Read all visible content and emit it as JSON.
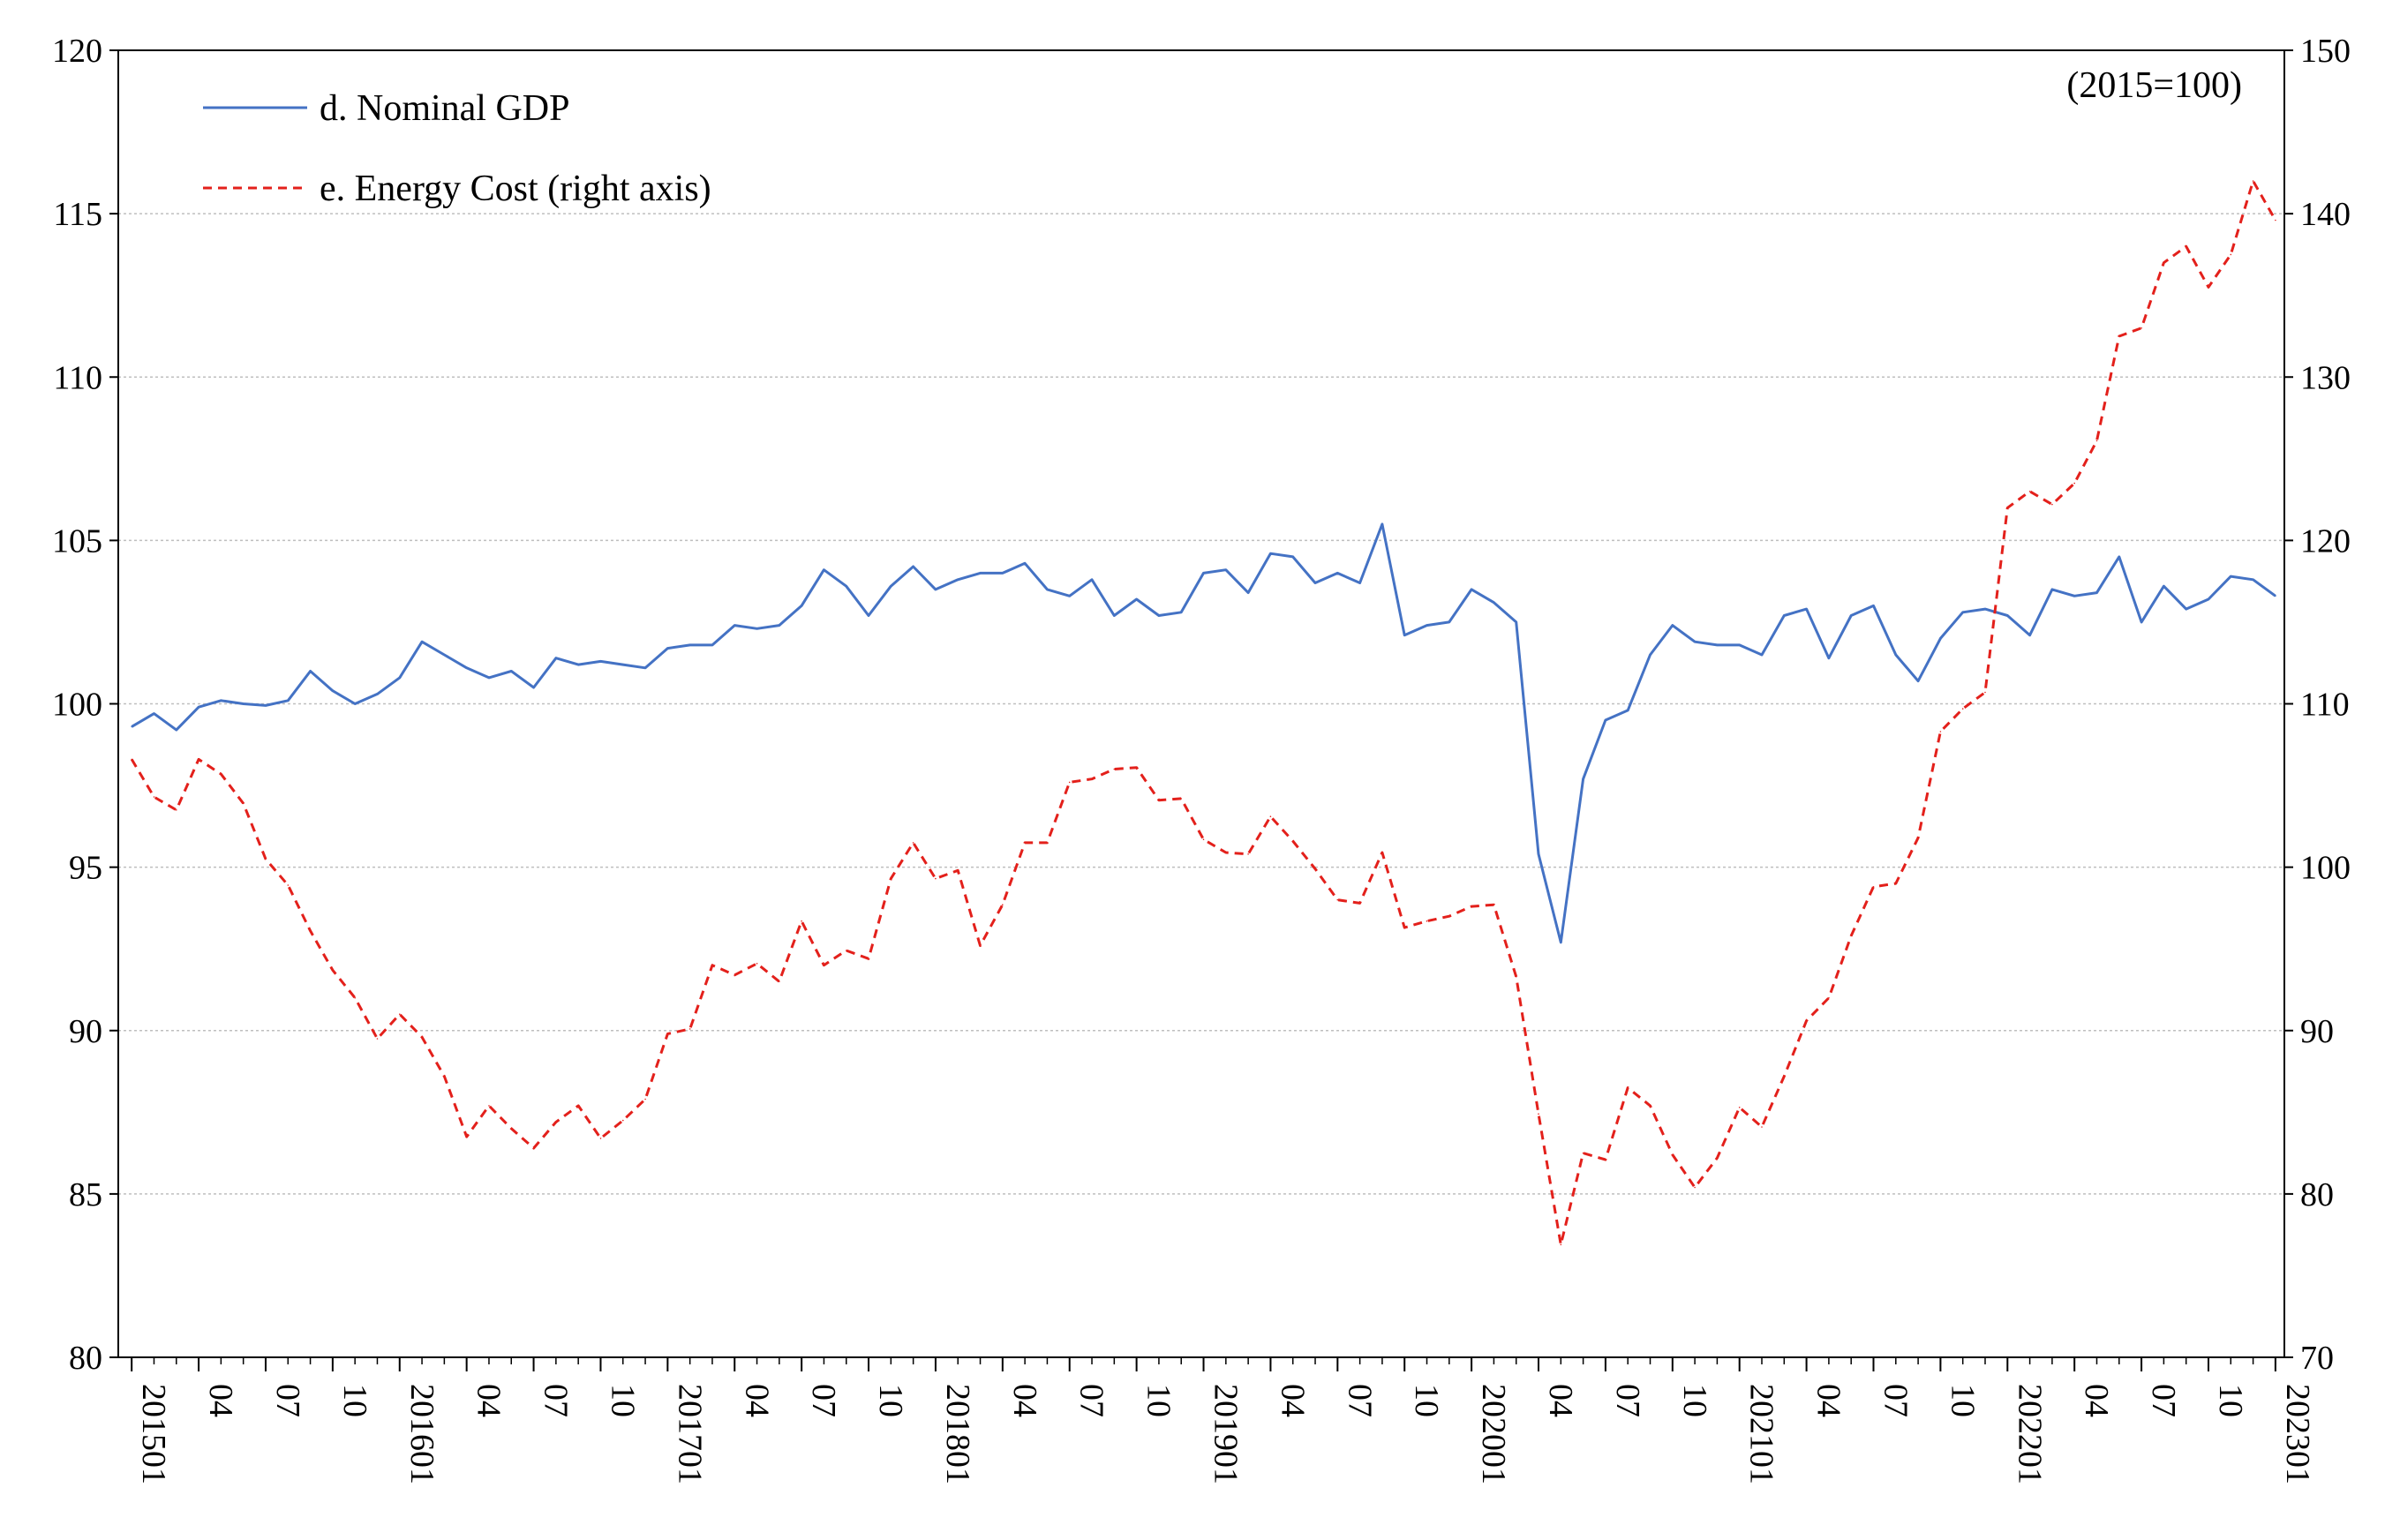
{
  "chart_data": {
    "type": "line",
    "note": "(2015=100)",
    "legend_position": "top-left",
    "grid": true,
    "y_left": {
      "min": 80,
      "max": 120,
      "ticks": [
        80,
        85,
        90,
        95,
        100,
        105,
        110,
        115,
        120
      ]
    },
    "y_right": {
      "min": 70,
      "max": 150,
      "ticks": [
        70,
        80,
        90,
        100,
        110,
        120,
        130,
        140,
        150
      ]
    },
    "x_tick_labels": [
      "201501",
      "04",
      "07",
      "10",
      "201601",
      "04",
      "07",
      "10",
      "201701",
      "04",
      "07",
      "10",
      "201801",
      "04",
      "07",
      "10",
      "201901",
      "04",
      "07",
      "10",
      "202001",
      "04",
      "07",
      "10",
      "202101",
      "04",
      "07",
      "10",
      "202201",
      "04",
      "07",
      "10",
      "202301"
    ],
    "x_tick_months": [
      0,
      3,
      6,
      9,
      12,
      15,
      18,
      21,
      24,
      27,
      30,
      33,
      36,
      39,
      42,
      45,
      48,
      51,
      54,
      57,
      60,
      63,
      66,
      69,
      72,
      75,
      78,
      81,
      84,
      87,
      90,
      93,
      96
    ],
    "series": [
      {
        "name": "d. Nominal GDP",
        "axis": "left",
        "color": "#4472C4",
        "style": "solid",
        "values": [
          99.3,
          99.7,
          99.2,
          99.9,
          100.1,
          100.0,
          99.95,
          100.1,
          101.0,
          100.4,
          100.0,
          100.3,
          100.8,
          101.9,
          101.5,
          101.1,
          100.8,
          101.0,
          100.5,
          101.4,
          101.2,
          101.3,
          101.2,
          101.1,
          101.7,
          101.8,
          101.8,
          102.4,
          102.3,
          102.4,
          103.0,
          104.1,
          103.6,
          102.7,
          103.6,
          104.2,
          103.5,
          103.8,
          104.0,
          104.0,
          104.3,
          103.5,
          103.3,
          103.8,
          102.7,
          103.2,
          102.7,
          102.8,
          104.0,
          104.1,
          103.4,
          104.6,
          104.5,
          103.7,
          104.0,
          103.7,
          105.5,
          102.1,
          102.4,
          102.5,
          103.5,
          103.1,
          102.5,
          95.4,
          92.7,
          97.7,
          99.5,
          99.8,
          101.5,
          102.4,
          101.9,
          101.8,
          101.8,
          101.5,
          102.7,
          102.9,
          101.4,
          102.7,
          103.0,
          101.5,
          100.7,
          102.0,
          102.8,
          102.9,
          102.7,
          102.1,
          103.5,
          103.3,
          103.4,
          104.5,
          102.5,
          103.6,
          102.9,
          103.2,
          103.9,
          103.8,
          103.3
        ]
      },
      {
        "name": "e. Energy Cost (right axis)",
        "axis": "right",
        "color": "#E3201B",
        "style": "dashed",
        "values": [
          106.6,
          104.3,
          103.5,
          106.6,
          105.7,
          103.9,
          100.5,
          98.9,
          96.1,
          93.7,
          92.0,
          89.5,
          91.0,
          89.6,
          87.2,
          83.5,
          85.4,
          84.0,
          82.8,
          84.4,
          85.4,
          83.4,
          84.5,
          85.8,
          89.8,
          90.1,
          94.0,
          93.4,
          94.1,
          93.0,
          96.7,
          94.0,
          94.9,
          94.4,
          99.3,
          101.5,
          99.3,
          99.8,
          95.2,
          97.7,
          101.5,
          101.5,
          105.2,
          105.4,
          106.0,
          106.1,
          104.1,
          104.2,
          101.7,
          100.9,
          100.8,
          103.1,
          101.6,
          99.9,
          98.0,
          97.8,
          100.9,
          96.3,
          96.7,
          97.0,
          97.6,
          97.7,
          93.3,
          84.9,
          76.9,
          82.5,
          82.1,
          86.5,
          85.4,
          82.4,
          80.4,
          82.2,
          85.3,
          84.1,
          87.2,
          90.6,
          92.0,
          95.8,
          98.8,
          99.0,
          101.8,
          108.3,
          109.7,
          110.7,
          122.0,
          123.0,
          122.2,
          123.5,
          126.1,
          132.5,
          133.0,
          137.0,
          138.0,
          135.5,
          137.5,
          142.0,
          139.6
        ]
      }
    ]
  }
}
